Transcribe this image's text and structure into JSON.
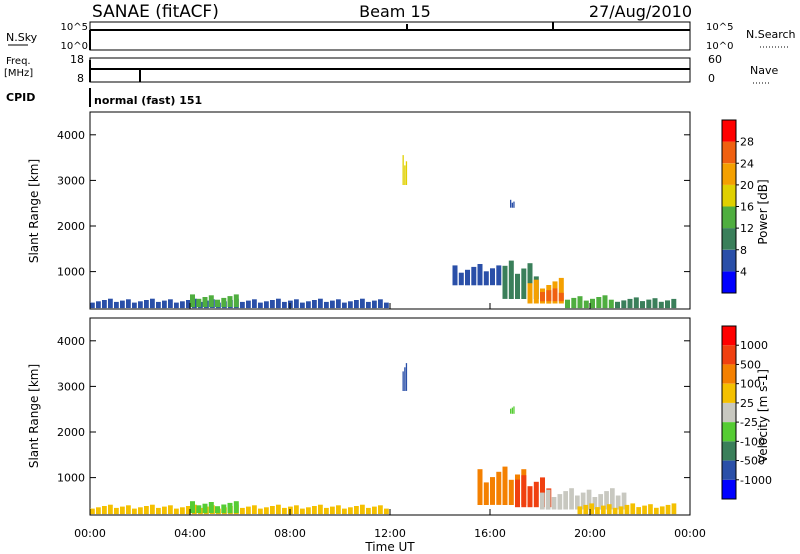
{
  "header": {
    "station": "SANAE (fitACF)",
    "beam": "Beam 15",
    "date": "27/Aug/2010"
  },
  "strip_labels": {
    "nsky": "N.Sky",
    "nsearch": "N.Search",
    "freq": "Freq.",
    "freq_unit": "[MHz]",
    "nave": "Nave",
    "cpid": "CPID",
    "cpid_value": "normal (fast) 151",
    "nsky_ticks": [
      "10^5",
      "10^0"
    ],
    "nsearch_ticks": [
      "10^5",
      "10^0"
    ],
    "freq_ticks": [
      "18",
      "8"
    ],
    "nave_ticks": [
      "60",
      "0"
    ]
  },
  "colors": {
    "power": [
      "#0000ff",
      "#2a4fa8",
      "#3a7f5a",
      "#4fae3f",
      "#e0d000",
      "#f4a000",
      "#f06010",
      "#ff0000"
    ],
    "velocity": [
      "#0000ff",
      "#2a4fa8",
      "#3a7f5a",
      "#55cc33",
      "#c8c8c0",
      "#f4c000",
      "#f48000",
      "#f04010",
      "#ff0000"
    ]
  },
  "chart_data": [
    {
      "type": "heatmap",
      "name": "power",
      "ylabel": "Slant Range [km]",
      "xlabel": "",
      "ylim": [
        180,
        4500
      ],
      "yticks": [
        "1000",
        "2000",
        "3000",
        "4000"
      ],
      "colorbar_label": "Power [dB]",
      "colorbar_ticks": [
        "4",
        "8",
        "12",
        "16",
        "20",
        "24",
        "28"
      ],
      "clim": [
        0,
        30
      ],
      "regions": [
        {
          "t0": 0.0,
          "t1": 12.0,
          "r0": 200,
          "r1": 420,
          "level": 1
        },
        {
          "t0": 4.0,
          "t1": 6.0,
          "r0": 220,
          "r1": 520,
          "level": 3
        },
        {
          "t0": 14.5,
          "t1": 16.5,
          "r0": 700,
          "r1": 1200,
          "level": 1
        },
        {
          "t0": 16.5,
          "t1": 18.0,
          "r0": 400,
          "r1": 1300,
          "level": 2
        },
        {
          "t0": 17.5,
          "t1": 19.0,
          "r0": 300,
          "r1": 900,
          "level": 5
        },
        {
          "t0": 18.0,
          "t1": 19.0,
          "r0": 350,
          "r1": 650,
          "level": 6
        },
        {
          "t0": 19.0,
          "t1": 21.0,
          "r0": 200,
          "r1": 500,
          "level": 3
        },
        {
          "t0": 21.0,
          "t1": 23.5,
          "r0": 200,
          "r1": 450,
          "level": 2
        },
        {
          "t0": 12.5,
          "t1": 12.7,
          "r0": 2900,
          "r1": 3600,
          "level": 4
        },
        {
          "t0": 16.8,
          "t1": 17.0,
          "r0": 2400,
          "r1": 2600,
          "level": 1
        }
      ]
    },
    {
      "type": "heatmap",
      "name": "velocity",
      "ylabel": "Slant Range [km]",
      "xlabel": "Time UT",
      "ylim": [
        180,
        4500
      ],
      "yticks": [
        "1000",
        "2000",
        "3000",
        "4000"
      ],
      "xticks": [
        "00:00",
        "04:00",
        "08:00",
        "12:00",
        "16:00",
        "20:00",
        "00:00"
      ],
      "colorbar_label": "Velocity [m s-1]",
      "colorbar_ticks": [
        "1000",
        "500",
        "100",
        "25",
        "-25",
        "-100",
        "-500",
        "-1000"
      ],
      "regions": [
        {
          "t0": 0.0,
          "t1": 12.0,
          "r0": 200,
          "r1": 420,
          "level": 5
        },
        {
          "t0": 4.0,
          "t1": 6.0,
          "r0": 220,
          "r1": 500,
          "level": 3
        },
        {
          "t0": 15.5,
          "t1": 17.5,
          "r0": 400,
          "r1": 1300,
          "level": 6
        },
        {
          "t0": 17.0,
          "t1": 18.5,
          "r0": 350,
          "r1": 1100,
          "level": 7
        },
        {
          "t0": 18.0,
          "t1": 21.5,
          "r0": 300,
          "r1": 800,
          "level": 4
        },
        {
          "t0": 19.5,
          "t1": 23.5,
          "r0": 200,
          "r1": 450,
          "level": 5
        },
        {
          "t0": 12.5,
          "t1": 12.7,
          "r0": 2900,
          "r1": 3600,
          "level": 1
        },
        {
          "t0": 16.8,
          "t1": 17.0,
          "r0": 2400,
          "r1": 2600,
          "level": 3
        }
      ]
    }
  ]
}
